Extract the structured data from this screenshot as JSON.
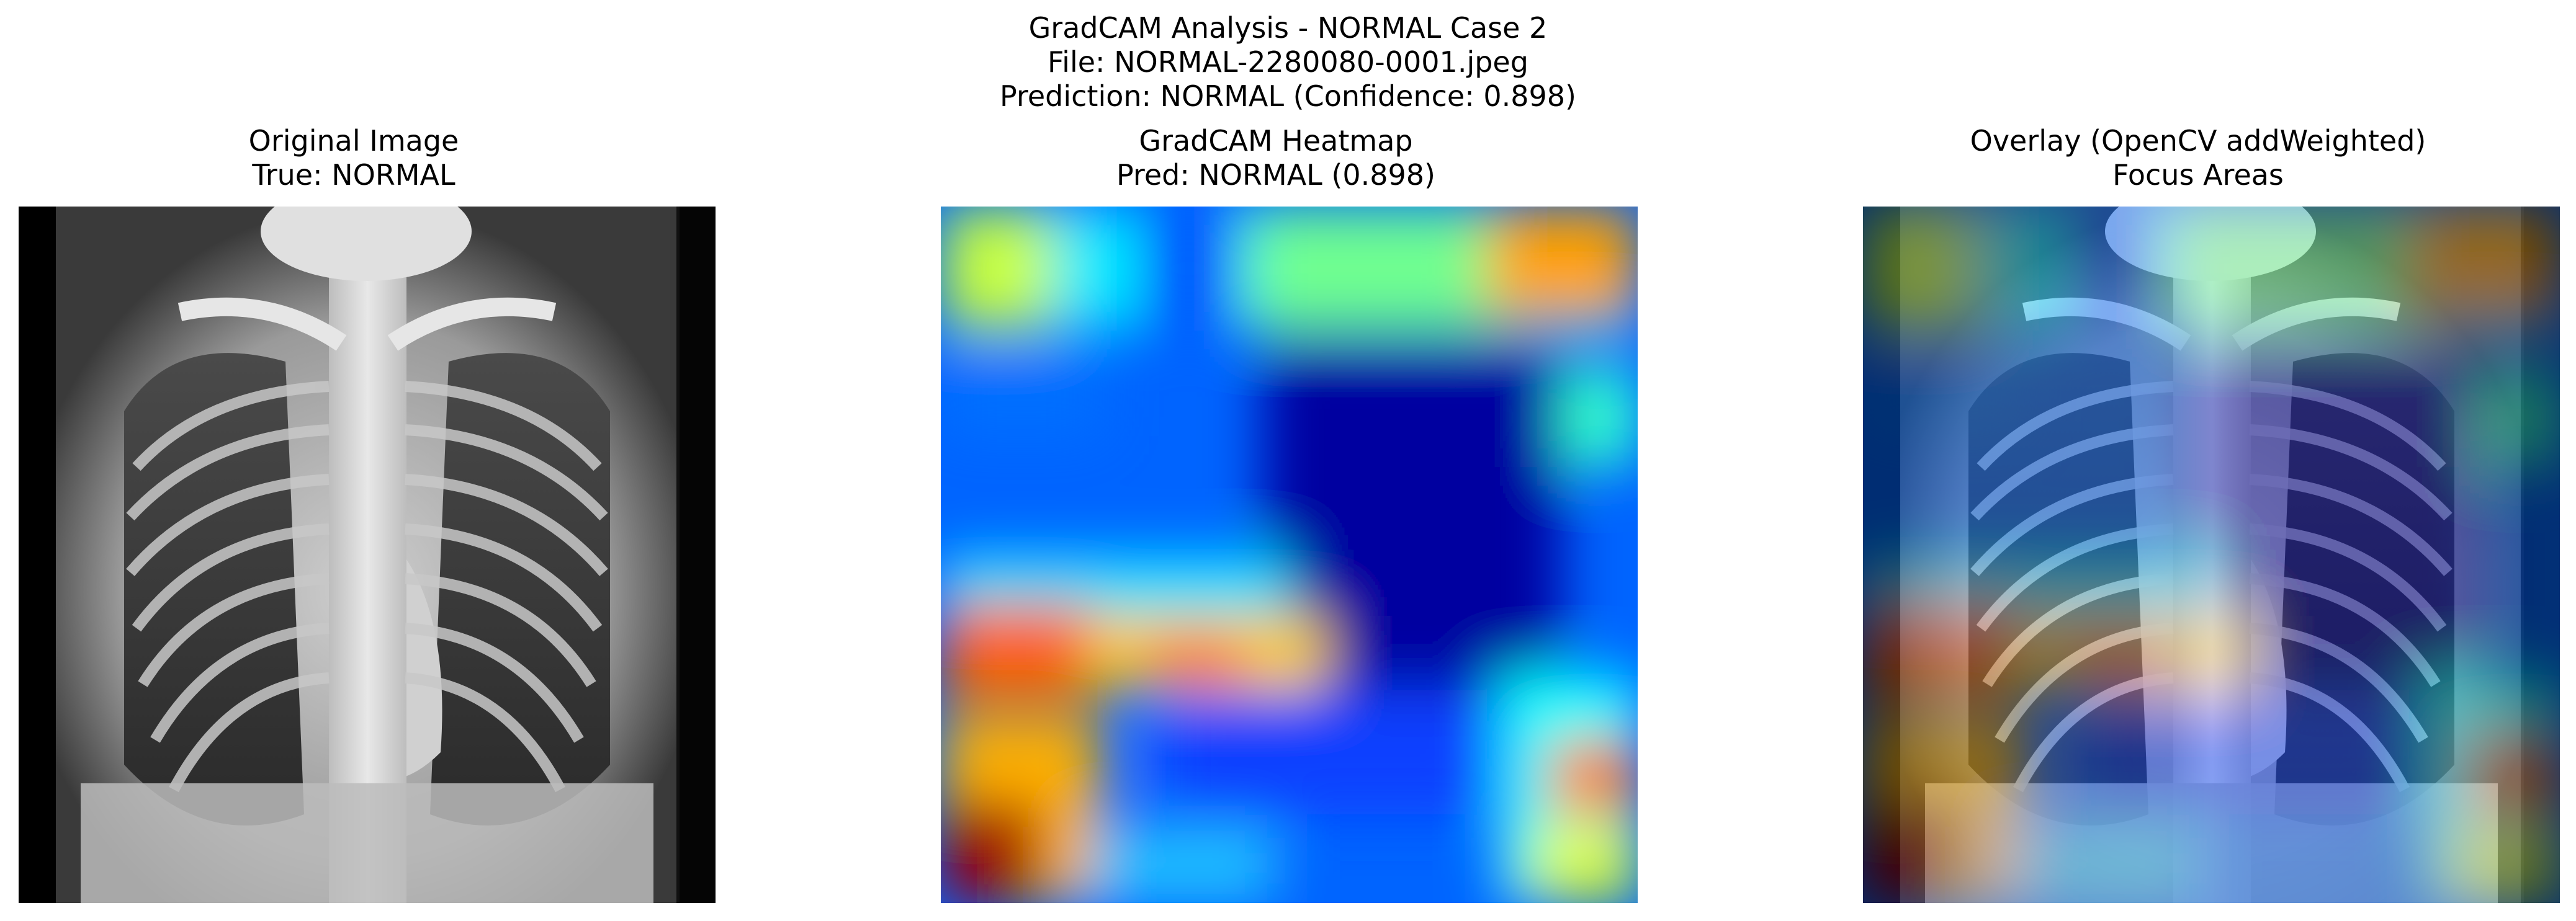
{
  "figure": {
    "suptitle_lines": [
      "GradCAM Analysis - NORMAL Case 2",
      "File: NORMAL-2280080-0001.jpeg",
      "Prediction: NORMAL (Confidence: 0.898)"
    ]
  },
  "panels": [
    {
      "title_lines": [
        "Original Image",
        "True: NORMAL"
      ],
      "content": "chest-xray"
    },
    {
      "title_lines": [
        "GradCAM Heatmap",
        "Pred: NORMAL (0.898)"
      ],
      "content": "jet-heatmap"
    },
    {
      "title_lines": [
        "Overlay (OpenCV addWeighted)",
        "Focus Areas"
      ],
      "content": "xray-with-heatmap-overlay"
    }
  ]
}
